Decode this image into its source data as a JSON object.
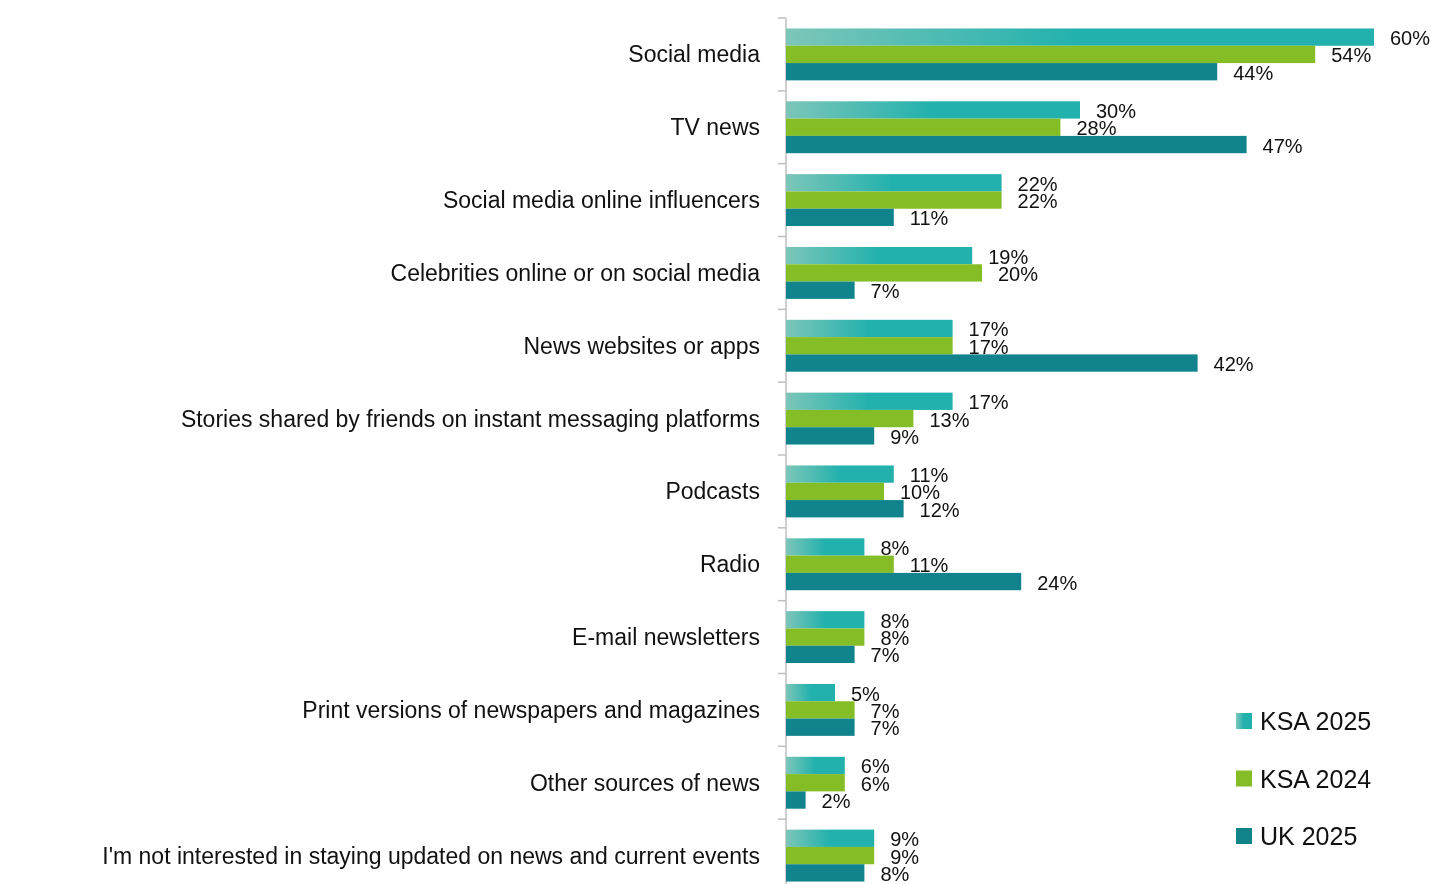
{
  "chart_data": {
    "type": "bar",
    "orientation": "horizontal",
    "categories": [
      "Social media",
      "TV news",
      "Social media online influencers",
      "Celebrities online or on social media",
      "News websites or apps",
      "Stories shared by friends on instant messaging platforms",
      "Podcasts",
      "Radio",
      "E-mail newsletters",
      "Print versions of newspapers and magazines",
      "Other sources of news",
      "I'm not interested in staying updated on news and current events"
    ],
    "series": [
      {
        "name": "KSA 2025",
        "color": "#22b1ad",
        "values": [
          60,
          30,
          22,
          19,
          17,
          17,
          11,
          8,
          8,
          5,
          6,
          9
        ],
        "value_labels": [
          "60%",
          "30%",
          "22%",
          "19%",
          "17%",
          "17%",
          "11%",
          "8%",
          "8%",
          "5%",
          "6%",
          "9%"
        ]
      },
      {
        "name": "KSA 2024",
        "color": "#84bd26",
        "values": [
          54,
          28,
          22,
          20,
          17,
          13,
          10,
          11,
          8,
          7,
          6,
          9
        ],
        "value_labels": [
          "54%",
          "28%",
          "22%",
          "20%",
          "17%",
          "13%",
          "10%",
          "11%",
          "8%",
          "7%",
          "6%",
          "9%"
        ]
      },
      {
        "name": "UK 2025",
        "color": "#10838c",
        "values": [
          44,
          47,
          11,
          7,
          42,
          9,
          12,
          24,
          7,
          7,
          2,
          8
        ],
        "value_labels": [
          "44%",
          "47%",
          "11%",
          "7%",
          "42%",
          "9%",
          "12%",
          "24%",
          "7%",
          "7%",
          "2%",
          "8%"
        ]
      }
    ],
    "legend": "bottom right"
  }
}
